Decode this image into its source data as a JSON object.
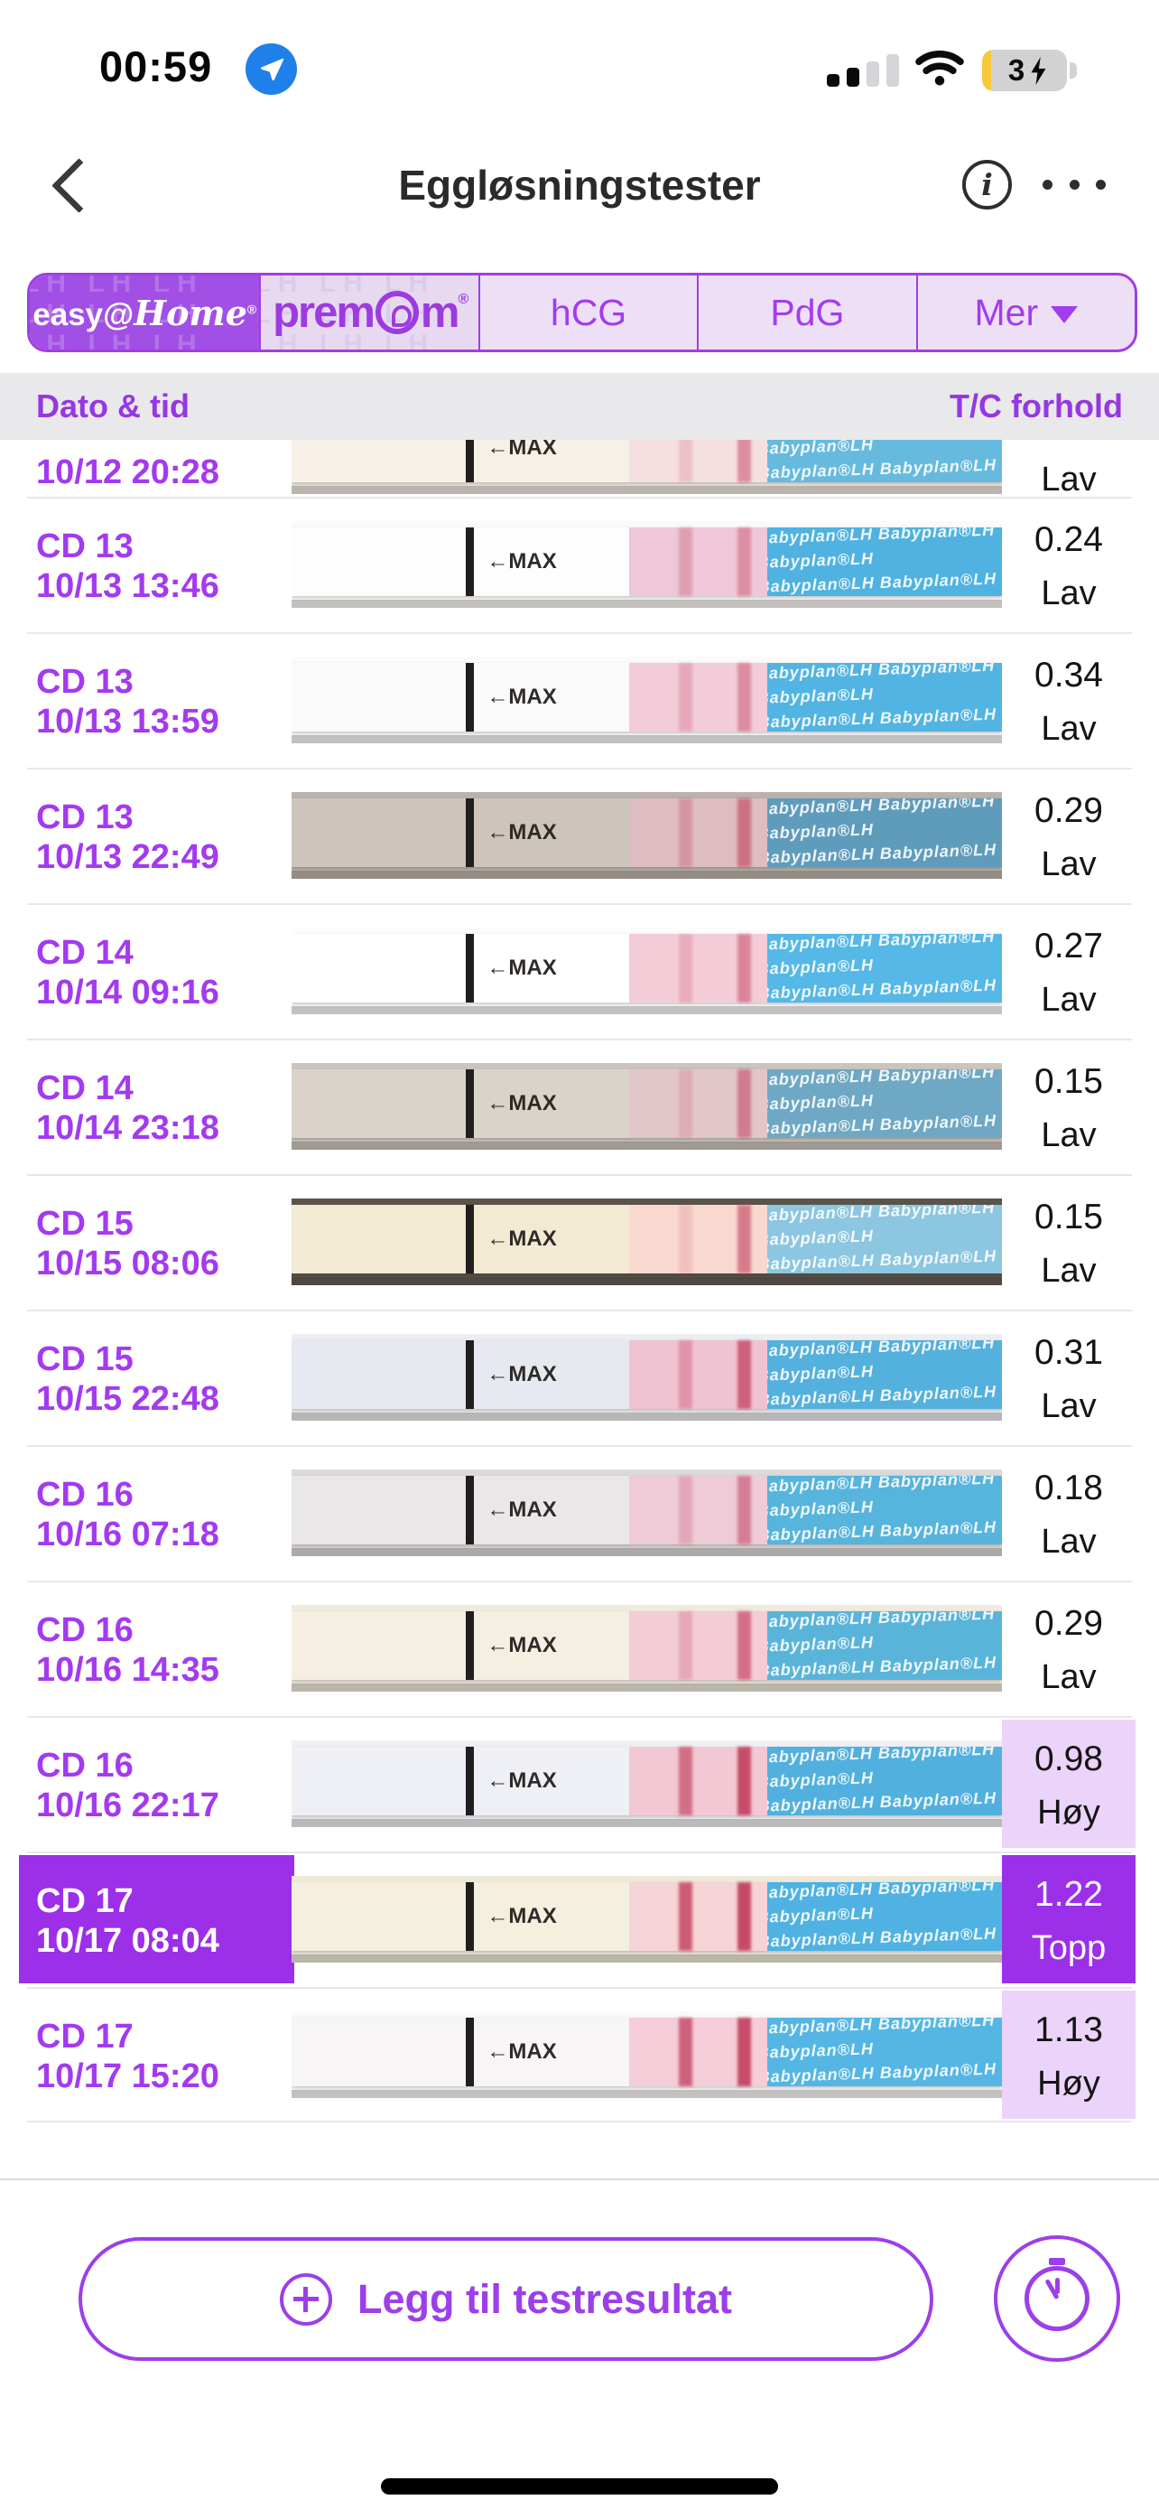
{
  "status_bar": {
    "time": "00:59",
    "location_active": true,
    "signal_bars_filled": 2,
    "signal_bars_total": 4,
    "wifi": "full",
    "battery_percent": "3",
    "battery_charging": true
  },
  "header": {
    "title": "Eggløsningstester"
  },
  "tabs": {
    "items": [
      {
        "label": "easy@Home",
        "selected": true
      },
      {
        "label": "premom",
        "selected": false
      },
      {
        "label": "hCG",
        "selected": false
      },
      {
        "label": "PdG",
        "selected": false
      },
      {
        "label": "Mer",
        "selected": false,
        "has_dropdown": true
      }
    ],
    "watermark": "LH LH LH LH LH LH LH LH LH LH LH LH LH LH LH LH LH LH LH LH LH LH LH LH LH LH LH LH LH LH LH LH"
  },
  "table": {
    "col_left": "Dato & tid",
    "col_right": "T/C forhold",
    "strip_brand": "Babyplan®LH",
    "strip_max_label": "←MAX",
    "rows": [
      {
        "cd": "",
        "datetime": "10/12 20:28",
        "ratio": "",
        "level": "Lav",
        "highlight": "none",
        "partial": true,
        "strip": {
          "bg": "#efe9e2",
          "base": "#f6f0e6",
          "pink": "#f6dfe0",
          "t": 0.18,
          "c": 0.5,
          "blue": "#66bade"
        }
      },
      {
        "cd": "CD 13",
        "datetime": "10/13 13:46",
        "ratio": "0.24",
        "level": "Lav",
        "highlight": "none",
        "partial": false,
        "strip": {
          "bg": "#fbfafa",
          "base": "#fdfdfd",
          "pink": "#eec8d8",
          "t": 0.3,
          "c": 0.42,
          "blue": "#4fb2e0"
        }
      },
      {
        "cd": "CD 13",
        "datetime": "10/13 13:59",
        "ratio": "0.34",
        "level": "Lav",
        "highlight": "none",
        "partial": false,
        "strip": {
          "bg": "#fcfbfb",
          "base": "#fbfafa",
          "pink": "#f2cdd9",
          "t": 0.25,
          "c": 0.45,
          "blue": "#52b4e2"
        }
      },
      {
        "cd": "CD 13",
        "datetime": "10/13 22:49",
        "ratio": "0.29",
        "level": "Lav",
        "highlight": "none",
        "partial": false,
        "strip": {
          "bg": "#b9b3ab",
          "base": "#cdc5bb",
          "pink": "#ddbcc2",
          "t": 0.3,
          "c": 0.6,
          "blue": "#5f9cbc"
        }
      },
      {
        "cd": "CD 14",
        "datetime": "10/14 09:16",
        "ratio": "0.27",
        "level": "Lav",
        "highlight": "none",
        "partial": false,
        "strip": {
          "bg": "#fdfdfd",
          "base": "#ffffff",
          "pink": "#f4ccd8",
          "t": 0.22,
          "c": 0.5,
          "blue": "#55b8e6"
        }
      },
      {
        "cd": "CD 14",
        "datetime": "10/14 23:18",
        "ratio": "0.15",
        "level": "Lav",
        "highlight": "none",
        "partial": false,
        "strip": {
          "bg": "#cbc5bd",
          "base": "#d9d3c9",
          "pink": "#e3c6ca",
          "t": 0.18,
          "c": 0.55,
          "blue": "#6ea8c4"
        }
      },
      {
        "cd": "CD 15",
        "datetime": "10/15 08:06",
        "ratio": "0.15",
        "level": "Lav",
        "highlight": "none",
        "partial": false,
        "strip": {
          "bg": "#5a544b",
          "base": "#f2ead2",
          "pink": "#f8d8cf",
          "t": 0.15,
          "c": 0.6,
          "blue": "#8cc6e0"
        }
      },
      {
        "cd": "CD 15",
        "datetime": "10/15 22:48",
        "ratio": "0.31",
        "level": "Lav",
        "highlight": "none",
        "partial": false,
        "strip": {
          "bg": "#eceef2",
          "base": "#e6e9f0",
          "pink": "#f0c3d2",
          "t": 0.35,
          "c": 0.75,
          "blue": "#54b0dc"
        }
      },
      {
        "cd": "CD 16",
        "datetime": "10/16 07:18",
        "ratio": "0.18",
        "level": "Lav",
        "highlight": "none",
        "partial": false,
        "strip": {
          "bg": "#dcdad9",
          "base": "#e9e7e7",
          "pink": "#eecbd7",
          "t": 0.25,
          "c": 0.55,
          "blue": "#57b4dc"
        }
      },
      {
        "cd": "CD 16",
        "datetime": "10/16 14:35",
        "ratio": "0.29",
        "level": "Lav",
        "highlight": "none",
        "partial": false,
        "strip": {
          "bg": "#f0eadf",
          "base": "#f5efe2",
          "pink": "#f3ccd6",
          "t": 0.25,
          "c": 0.65,
          "blue": "#5ab4da"
        }
      },
      {
        "cd": "CD 16",
        "datetime": "10/16 22:17",
        "ratio": "0.98",
        "level": "Høy",
        "highlight": "light",
        "partial": false,
        "strip": {
          "bg": "#f0f1f5",
          "base": "#eef0f6",
          "pink": "#f2c8d4",
          "t": 0.65,
          "c": 0.9,
          "blue": "#52b0de"
        }
      },
      {
        "cd": "CD 17",
        "datetime": "10/17 08:04",
        "ratio": "1.22",
        "level": "Topp",
        "highlight": "full",
        "partial": false,
        "strip": {
          "bg": "#f0eadb",
          "base": "#f5efde",
          "pink": "#f6d3d6",
          "t": 0.8,
          "c": 0.92,
          "blue": "#4fb2e2"
        }
      },
      {
        "cd": "CD 17",
        "datetime": "10/17 15:20",
        "ratio": "1.13",
        "level": "Høy",
        "highlight": "light",
        "partial": false,
        "strip": {
          "bg": "#fbfafa",
          "base": "#f7f5f5",
          "pink": "#f4cdd9",
          "t": 0.75,
          "c": 0.9,
          "blue": "#55b6e4"
        }
      }
    ]
  },
  "footer": {
    "add_label": "Legg til testresultat"
  },
  "colors": {
    "accent": "#A23CEF",
    "selected_row_bg": "#9C2FE8",
    "highlight_cell_bg": "#ECD3F9",
    "header_band_bg": "#E9E8EA",
    "divider": "#E8E6EB",
    "babyplan_blue": "#57B6E3",
    "battery_low_power": "#F7C83D",
    "location_badge": "#1F80EA"
  }
}
